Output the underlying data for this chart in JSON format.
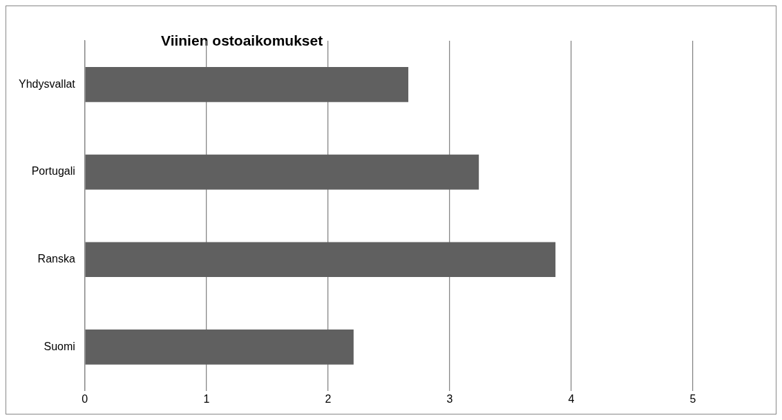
{
  "chart_data": {
    "type": "bar",
    "orientation": "horizontal",
    "title": "Viinien ostoaikomukset",
    "categories": [
      "Yhdysvallat",
      "Portugali",
      "Ranska",
      "Suomi"
    ],
    "values": [
      2.66,
      3.24,
      3.87,
      2.21
    ],
    "color": "#606060",
    "xlim": [
      0,
      5
    ],
    "xticks": [
      0,
      1,
      2,
      3,
      4,
      5
    ],
    "grid": "x",
    "legend": false
  }
}
